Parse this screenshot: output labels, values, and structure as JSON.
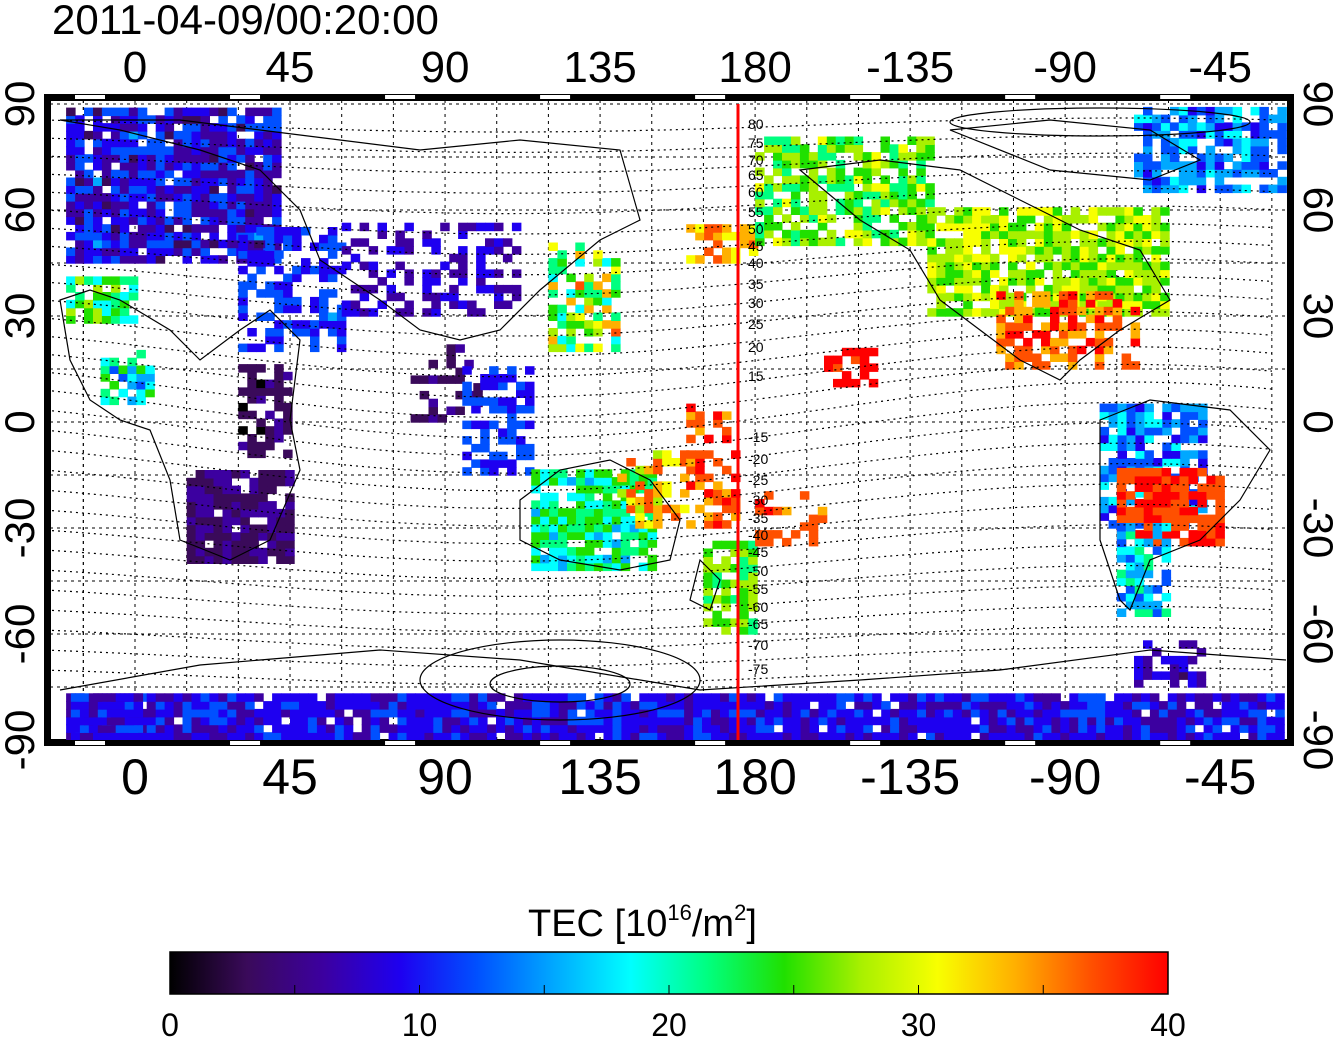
{
  "timestamp": "2011-04-09/00:20:00",
  "map": {
    "lon_tick_labels": [
      "0",
      "45",
      "90",
      "135",
      "180",
      "-135",
      "-90",
      "-45"
    ],
    "lat_tick_labels": [
      "90",
      "60",
      "30",
      "0",
      "-30",
      "-60",
      "-90"
    ],
    "meridian_line_color": "#ff0000",
    "magnetic_latitude_labels": [
      "80",
      "75",
      "70",
      "65",
      "60",
      "55",
      "50",
      "45",
      "40",
      "35",
      "30",
      "25",
      "20",
      "15",
      "-15",
      "-20",
      "-25",
      "-30",
      "-35",
      "-40",
      "-45",
      "-50",
      "-55",
      "-60",
      "-65",
      "-70",
      "-75"
    ]
  },
  "colorbar": {
    "title_main": "TEC  [10",
    "title_exp": "16",
    "title_unit": "/m",
    "title_unit_exp": "2",
    "title_close": "]",
    "tick_labels": [
      "0",
      "10",
      "20",
      "30",
      "40"
    ],
    "range": [
      0,
      40
    ],
    "colors": [
      "#000000",
      "#3a0a5a",
      "#3c00a0",
      "#1e00f0",
      "#0050ff",
      "#00a8ff",
      "#00ffff",
      "#00ff80",
      "#20e000",
      "#a8f000",
      "#f8ff00",
      "#ffb000",
      "#ff5000",
      "#ff0000"
    ]
  }
}
